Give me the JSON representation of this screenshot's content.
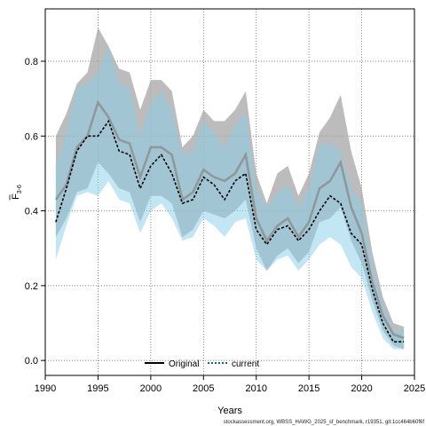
{
  "chart_data": {
    "type": "line",
    "xlabel": "Years",
    "ylabel_main": "F",
    "ylabel_sub": "3-6",
    "xlim": [
      1990,
      2025
    ],
    "ylim": [
      -0.04,
      0.94
    ],
    "xticks": [
      1990,
      1995,
      2000,
      2005,
      2010,
      2015,
      2020,
      2025
    ],
    "yticks": [
      0.0,
      0.2,
      0.4,
      0.6,
      0.8
    ],
    "yticklabels": [
      "0.0",
      "0.2",
      "0.4",
      "0.6",
      "0.8"
    ],
    "grid": true,
    "legend_position": "bottom-center",
    "x": [
      1991,
      1992,
      1993,
      1994,
      1995,
      1996,
      1997,
      1998,
      1999,
      2000,
      2001,
      2002,
      2003,
      2004,
      2005,
      2006,
      2007,
      2008,
      2009,
      2010,
      2011,
      2012,
      2013,
      2014,
      2015,
      2016,
      2017,
      2018,
      2019,
      2020,
      2021,
      2022,
      2023,
      2024
    ],
    "series": [
      {
        "name": "Original",
        "color": "#888888",
        "band_color": "#a6a6a6",
        "values": [
          0.43,
          0.47,
          0.57,
          0.6,
          0.69,
          0.65,
          0.59,
          0.58,
          0.49,
          0.57,
          0.57,
          0.55,
          0.43,
          0.45,
          0.51,
          0.49,
          0.48,
          0.5,
          0.55,
          0.38,
          0.32,
          0.36,
          0.38,
          0.33,
          0.37,
          0.46,
          0.48,
          0.53,
          0.41,
          0.34,
          0.21,
          0.12,
          0.07,
          0.06
        ],
        "lower": [
          0.33,
          0.38,
          0.45,
          0.46,
          0.53,
          0.5,
          0.46,
          0.45,
          0.37,
          0.44,
          0.44,
          0.42,
          0.33,
          0.35,
          0.4,
          0.39,
          0.38,
          0.4,
          0.43,
          0.3,
          0.24,
          0.28,
          0.3,
          0.26,
          0.29,
          0.37,
          0.38,
          0.41,
          0.32,
          0.26,
          0.16,
          0.08,
          0.04,
          0.03
        ],
        "upper": [
          0.6,
          0.66,
          0.74,
          0.77,
          0.89,
          0.84,
          0.78,
          0.77,
          0.67,
          0.75,
          0.75,
          0.72,
          0.57,
          0.6,
          0.67,
          0.64,
          0.64,
          0.67,
          0.72,
          0.5,
          0.42,
          0.5,
          0.52,
          0.44,
          0.5,
          0.61,
          0.65,
          0.71,
          0.56,
          0.46,
          0.29,
          0.17,
          0.1,
          0.09
        ]
      },
      {
        "name": "current",
        "color": "#000000",
        "band_color": "#87ceeb",
        "values": [
          0.37,
          0.46,
          0.56,
          0.6,
          0.6,
          0.64,
          0.56,
          0.55,
          0.46,
          0.52,
          0.55,
          0.5,
          0.42,
          0.43,
          0.49,
          0.47,
          0.43,
          0.48,
          0.5,
          0.35,
          0.31,
          0.35,
          0.36,
          0.32,
          0.35,
          0.4,
          0.44,
          0.42,
          0.34,
          0.31,
          0.19,
          0.1,
          0.05,
          0.05
        ],
        "lower": [
          0.27,
          0.36,
          0.44,
          0.45,
          0.44,
          0.48,
          0.43,
          0.42,
          0.34,
          0.4,
          0.42,
          0.38,
          0.32,
          0.33,
          0.38,
          0.36,
          0.33,
          0.37,
          0.38,
          0.27,
          0.24,
          0.27,
          0.28,
          0.24,
          0.27,
          0.31,
          0.33,
          0.31,
          0.25,
          0.22,
          0.13,
          0.06,
          0.03,
          0.03
        ],
        "upper": [
          0.52,
          0.61,
          0.73,
          0.74,
          0.77,
          0.84,
          0.74,
          0.73,
          0.6,
          0.69,
          0.72,
          0.67,
          0.55,
          0.56,
          0.64,
          0.61,
          0.57,
          0.63,
          0.66,
          0.46,
          0.41,
          0.45,
          0.47,
          0.41,
          0.46,
          0.58,
          0.58,
          0.56,
          0.46,
          0.42,
          0.26,
          0.15,
          0.08,
          0.08
        ]
      }
    ],
    "footer": "stockassessment.org, WBSS_HAWG_2025_sf_benchmark, r19351, git:1cc464b60f6f"
  }
}
